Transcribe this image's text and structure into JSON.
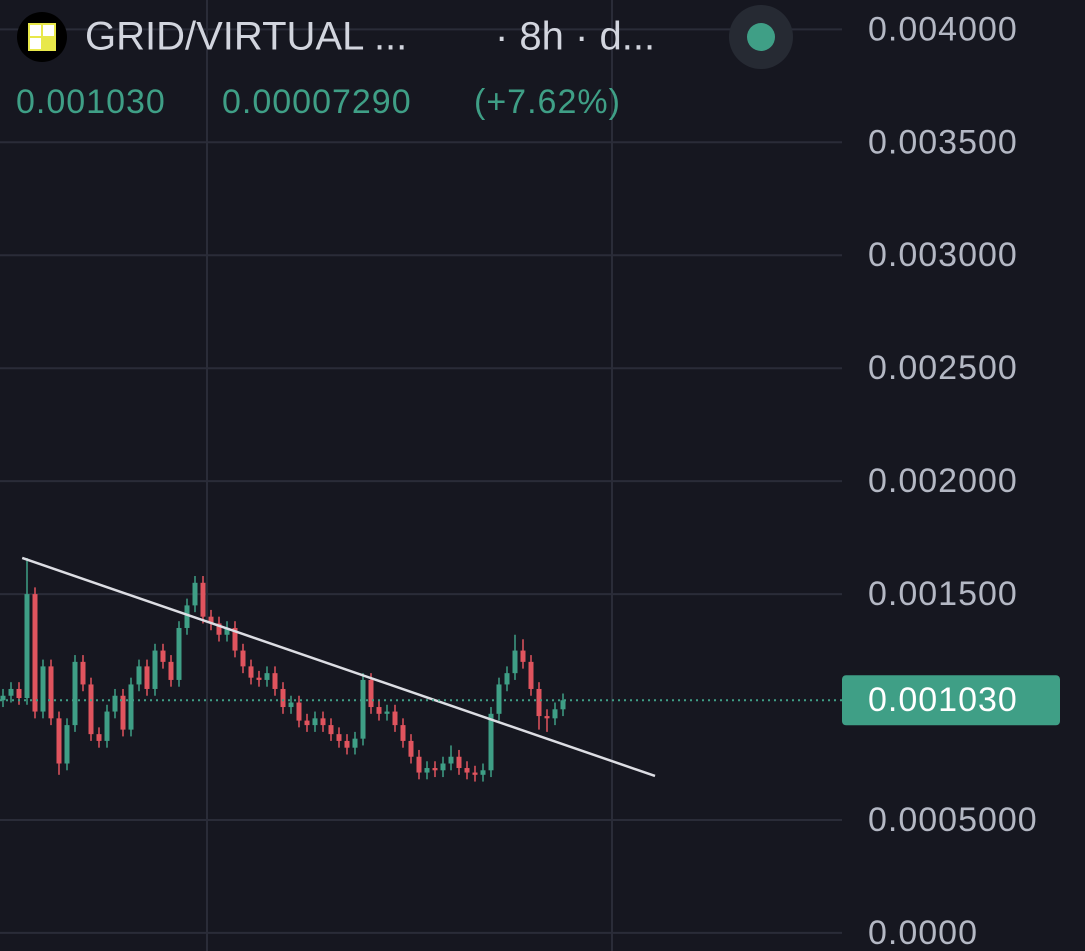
{
  "chart_data": {
    "type": "candlestick",
    "title": "GRID/VIRTUAL ...",
    "subtitle": "· 8h · d...",
    "last_price": {
      "value": 0.00103,
      "label": "0.001030"
    },
    "change": "0.00007290",
    "change_percent": "(+7.62%)",
    "up_color": "#3f9f86",
    "down_color": "#e0545e",
    "ylim": [
      -8e-05,
      0.00413
    ],
    "yticks": [
      {
        "value": 0,
        "label": "0.0000"
      },
      {
        "value": 0.0005,
        "label": "0.0005000"
      },
      {
        "value": 0.0015,
        "label": "0.001500"
      },
      {
        "value": 0.002,
        "label": "0.002000"
      },
      {
        "value": 0.0025,
        "label": "0.002500"
      },
      {
        "value": 0.003,
        "label": "0.003000"
      },
      {
        "value": 0.0035,
        "label": "0.003500"
      },
      {
        "value": 0.004,
        "label": "0.004000"
      }
    ],
    "grid": true,
    "trendline": {
      "x": [
        2.4,
        81.5
      ],
      "y": [
        0.00166,
        0.000695
      ]
    },
    "series": [
      {
        "open": [
          0.00103,
          0.00105,
          0.00108,
          0.00104,
          0.0015,
          0.00098,
          0.00118,
          0.00095,
          0.00075,
          0.00092,
          0.0012,
          0.0011,
          0.00088,
          0.00085,
          0.00098,
          0.00105,
          0.0009,
          0.0011,
          0.00118,
          0.00108,
          0.00125,
          0.0012,
          0.00112,
          0.00135,
          0.00145,
          0.00155,
          0.0014,
          0.00137,
          0.00132,
          0.00135,
          0.00125,
          0.00118,
          0.00113,
          0.00112,
          0.00115,
          0.00108,
          0.001,
          0.00102,
          0.00094,
          0.00092,
          0.00095,
          0.00092,
          0.00088,
          0.00085,
          0.00082,
          0.00086,
          0.00112,
          0.001,
          0.00097,
          0.00098,
          0.00092,
          0.00085,
          0.00078,
          0.00071,
          0.00073,
          0.00072,
          0.00075,
          0.00078,
          0.00073,
          0.00071,
          0.0007,
          0.00072,
          0.00097,
          0.0011,
          0.00115,
          0.00125,
          0.0012,
          0.00108,
          0.00096,
          0.00095,
          0.00099
        ],
        "high": [
          0.00108,
          0.00111,
          0.00111,
          0.00166,
          0.00153,
          0.00121,
          0.00121,
          0.00098,
          0.00095,
          0.00123,
          0.00123,
          0.00113,
          0.00091,
          0.00101,
          0.00108,
          0.00108,
          0.00113,
          0.00121,
          0.00121,
          0.00128,
          0.00128,
          0.00123,
          0.00138,
          0.00148,
          0.00158,
          0.00158,
          0.00143,
          0.0014,
          0.00138,
          0.00138,
          0.00128,
          0.00121,
          0.00116,
          0.00118,
          0.00118,
          0.00111,
          0.00105,
          0.00105,
          0.00097,
          0.00098,
          0.00098,
          0.00095,
          0.00091,
          0.00088,
          0.00089,
          0.00115,
          0.00115,
          0.00103,
          0.00101,
          0.00101,
          0.00095,
          0.00088,
          0.00081,
          0.00076,
          0.00076,
          0.00078,
          0.00083,
          0.00081,
          0.00076,
          0.00074,
          0.00075,
          0.001,
          0.00113,
          0.00118,
          0.00132,
          0.0013,
          0.00123,
          0.00111,
          0.00099,
          0.00102,
          0.00106
        ],
        "low": [
          0.001,
          0.00102,
          0.00101,
          0.00101,
          0.00095,
          0.00095,
          0.00092,
          0.0007,
          0.00072,
          0.00089,
          0.00107,
          0.00085,
          0.00082,
          0.00082,
          0.00095,
          0.00087,
          0.00087,
          0.00107,
          0.00105,
          0.00105,
          0.00117,
          0.00109,
          0.00109,
          0.00132,
          0.00142,
          0.00137,
          0.00134,
          0.00129,
          0.00129,
          0.00122,
          0.00115,
          0.0011,
          0.00109,
          0.00109,
          0.00105,
          0.00097,
          0.00097,
          0.00091,
          0.00089,
          0.00089,
          0.00089,
          0.00085,
          0.00082,
          0.00079,
          0.00079,
          0.00083,
          0.00097,
          0.00094,
          0.00094,
          0.00089,
          0.00082,
          0.00075,
          0.00068,
          0.00068,
          0.00069,
          0.00069,
          0.00072,
          0.0007,
          0.00068,
          0.00067,
          0.00067,
          0.00069,
          0.00094,
          0.00107,
          0.00112,
          0.00117,
          0.00105,
          0.0009,
          0.00089,
          0.00092,
          0.00096
        ],
        "close": [
          0.00105,
          0.00108,
          0.00104,
          0.0015,
          0.00098,
          0.00118,
          0.00095,
          0.00075,
          0.00092,
          0.0012,
          0.0011,
          0.00088,
          0.00085,
          0.00098,
          0.00105,
          0.0009,
          0.0011,
          0.00118,
          0.00108,
          0.00125,
          0.0012,
          0.00112,
          0.00135,
          0.00145,
          0.00155,
          0.0014,
          0.00137,
          0.00132,
          0.00135,
          0.00125,
          0.00118,
          0.00113,
          0.00112,
          0.00115,
          0.00108,
          0.001,
          0.00102,
          0.00094,
          0.00092,
          0.00095,
          0.00092,
          0.00088,
          0.00085,
          0.00082,
          0.00086,
          0.00112,
          0.001,
          0.00097,
          0.00098,
          0.00092,
          0.00085,
          0.00078,
          0.00071,
          0.00073,
          0.00072,
          0.00075,
          0.00078,
          0.00073,
          0.00071,
          0.0007,
          0.00072,
          0.00097,
          0.0011,
          0.00115,
          0.00125,
          0.0012,
          0.00108,
          0.00096,
          0.00095,
          0.00099,
          0.00103
        ]
      }
    ]
  }
}
